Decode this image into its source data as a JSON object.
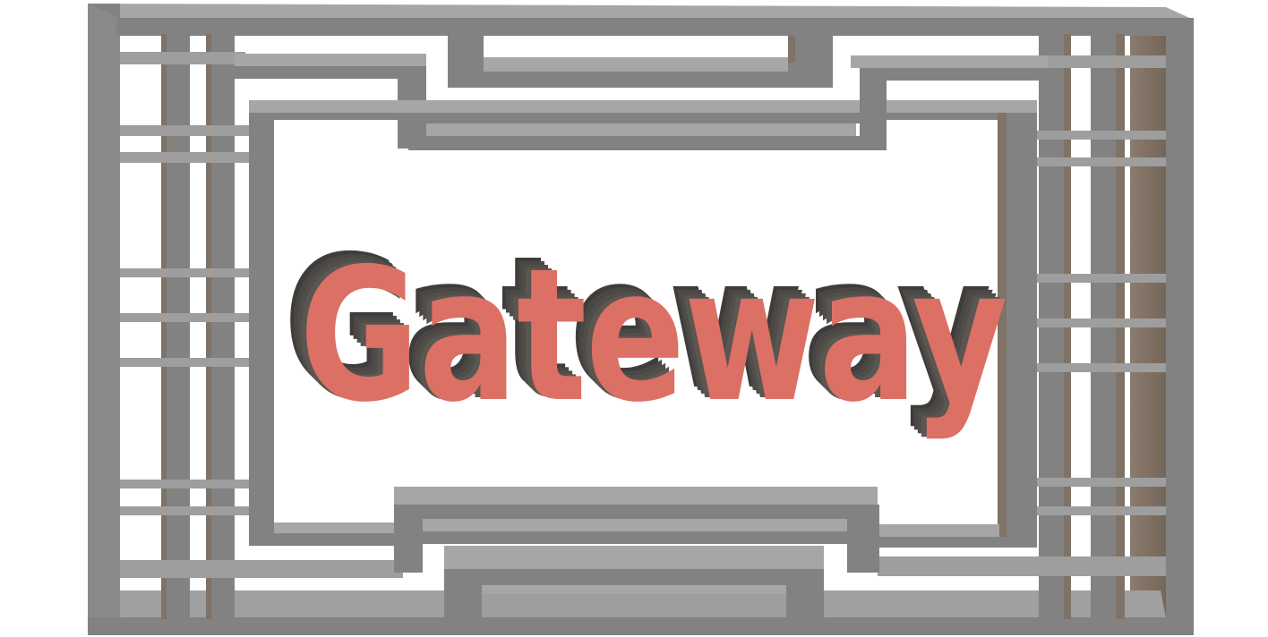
{
  "title": "Gateway",
  "colors": {
    "background": "#ffffff",
    "frame_top": "#9e9e9e",
    "frame_face": "#828282",
    "frame_side": "#7f7266",
    "frame_dark": "#6e6e6e",
    "text_face": "#dc7064",
    "text_extrude": "#4d4a47"
  }
}
